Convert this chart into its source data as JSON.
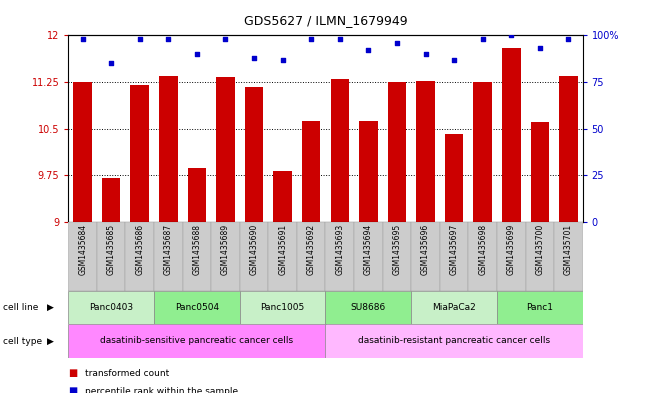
{
  "title": "GDS5627 / ILMN_1679949",
  "samples": [
    "GSM1435684",
    "GSM1435685",
    "GSM1435686",
    "GSM1435687",
    "GSM1435688",
    "GSM1435689",
    "GSM1435690",
    "GSM1435691",
    "GSM1435692",
    "GSM1435693",
    "GSM1435694",
    "GSM1435695",
    "GSM1435696",
    "GSM1435697",
    "GSM1435698",
    "GSM1435699",
    "GSM1435700",
    "GSM1435701"
  ],
  "bar_values": [
    11.25,
    9.7,
    11.2,
    11.35,
    9.87,
    11.33,
    11.17,
    9.82,
    10.63,
    11.3,
    10.63,
    11.25,
    11.27,
    10.42,
    11.25,
    11.8,
    10.6,
    11.35
  ],
  "percentile_values": [
    98,
    85,
    98,
    98,
    90,
    98,
    88,
    87,
    98,
    98,
    92,
    96,
    90,
    87,
    98,
    100,
    93,
    98
  ],
  "cell_lines": [
    {
      "name": "Panc0403",
      "start": 0,
      "end": 3
    },
    {
      "name": "Panc0504",
      "start": 3,
      "end": 6
    },
    {
      "name": "Panc1005",
      "start": 6,
      "end": 9
    },
    {
      "name": "SU8686",
      "start": 9,
      "end": 12
    },
    {
      "name": "MiaPaCa2",
      "start": 12,
      "end": 15
    },
    {
      "name": "Panc1",
      "start": 15,
      "end": 18
    }
  ],
  "cell_types": [
    {
      "name": "dasatinib-sensitive pancreatic cancer cells",
      "start": 0,
      "end": 9
    },
    {
      "name": "dasatinib-resistant pancreatic cancer cells",
      "start": 9,
      "end": 18
    }
  ],
  "cell_line_colors": [
    "#c8f0c8",
    "#90EE90",
    "#c8f0c8",
    "#90EE90",
    "#c8f0c8",
    "#90EE90"
  ],
  "cell_type_colors": [
    "#FF88FF",
    "#FFB8FF"
  ],
  "bar_color": "#CC0000",
  "dot_color": "#0000CC",
  "tick_bg_color": "#CCCCCC",
  "ylim_left": [
    9,
    12
  ],
  "ylim_right": [
    0,
    100
  ],
  "yticks_left": [
    9,
    9.75,
    10.5,
    11.25,
    12
  ],
  "yticks_right": [
    0,
    25,
    50,
    75,
    100
  ],
  "ytick_labels_left": [
    "9",
    "9.75",
    "10.5",
    "11.25",
    "12"
  ],
  "ytick_labels_right": [
    "0",
    "25",
    "50",
    "75",
    "100%"
  ]
}
